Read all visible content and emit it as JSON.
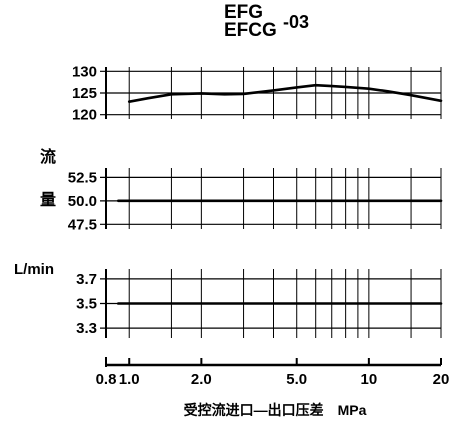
{
  "title": {
    "line1": "EFG",
    "line2": "EFCG",
    "suffix": "-03"
  },
  "side_labels": {
    "flow_char1": "流",
    "flow_char2": "量",
    "unit": "L/min"
  },
  "xaxis": {
    "label": "受控流进口—出口压差　MPa",
    "scale": "log",
    "range": [
      0.8,
      20
    ],
    "ticks": [
      0.8,
      1.0,
      2.0,
      5.0,
      10,
      20
    ],
    "tick_labels": [
      "0.8",
      "1.0",
      "2.0",
      "5.0",
      "10",
      "20"
    ]
  },
  "chart_data": [
    {
      "type": "line",
      "ylim": [
        119,
        131
      ],
      "yticks": [
        120,
        125,
        130
      ],
      "ytick_labels": [
        "120",
        "125",
        "130"
      ],
      "grid": true,
      "series": [
        {
          "x": [
            1.0,
            1.2,
            1.5,
            2.0,
            2.5,
            3.0,
            4.0,
            5.0,
            6.0,
            7.0,
            8.0,
            10.0,
            12.0,
            15.0,
            20.0
          ],
          "y": [
            123.0,
            123.8,
            124.7,
            124.9,
            124.7,
            124.8,
            125.6,
            126.3,
            126.8,
            126.6,
            126.4,
            126.0,
            125.4,
            124.5,
            123.2
          ]
        }
      ]
    },
    {
      "type": "line",
      "ylim": [
        47.0,
        53.5
      ],
      "yticks": [
        47.5,
        50.0,
        52.5
      ],
      "ytick_labels": [
        "47.5",
        "50.0",
        "52.5"
      ],
      "grid": true,
      "series": [
        {
          "x": [
            0.9,
            20.0
          ],
          "y": [
            50.0,
            50.0
          ]
        }
      ]
    },
    {
      "type": "line",
      "ylim": [
        3.22,
        3.78
      ],
      "yticks": [
        3.3,
        3.5,
        3.7
      ],
      "ytick_labels": [
        "3.3",
        "3.5",
        "3.7"
      ],
      "grid": true,
      "series": [
        {
          "x": [
            0.9,
            20.0
          ],
          "y": [
            3.5,
            3.5
          ]
        }
      ]
    }
  ]
}
